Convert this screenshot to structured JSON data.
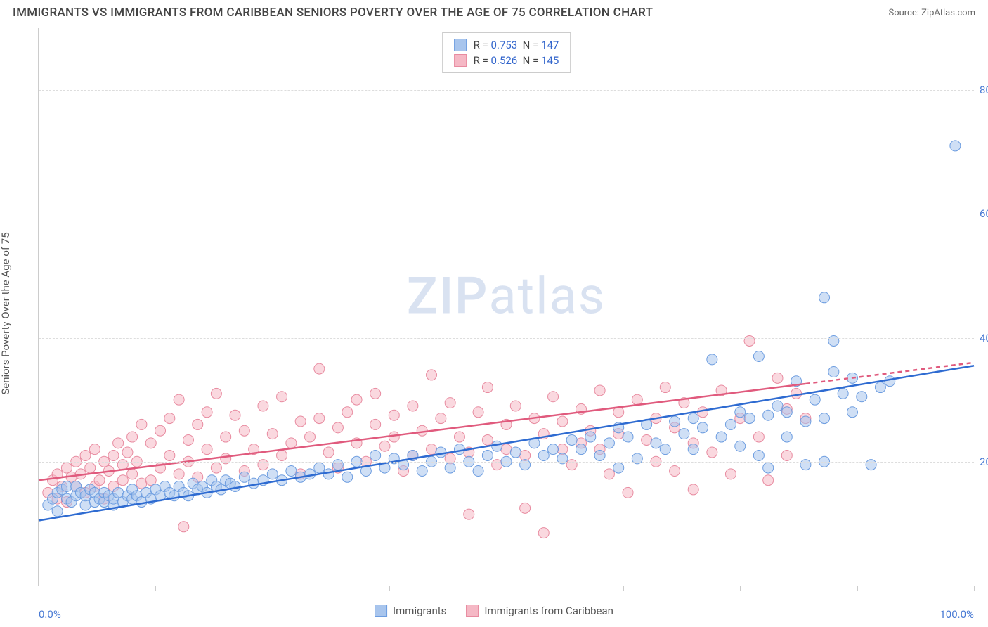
{
  "title": "IMMIGRANTS VS IMMIGRANTS FROM CARIBBEAN SENIORS POVERTY OVER THE AGE OF 75 CORRELATION CHART",
  "source": "Source: ZipAtlas.com",
  "watermark_a": "ZIP",
  "watermark_b": "atlas",
  "ylabel": "Seniors Poverty Over the Age of 75",
  "chart": {
    "type": "scatter",
    "xlim": [
      0,
      100
    ],
    "ylim": [
      0,
      90
    ],
    "xtick_positions": [
      0,
      12.5,
      25,
      37.5,
      50,
      62.5,
      75,
      87.5,
      100
    ],
    "xtick_labels": {
      "0": "0.0%",
      "100": "100.0%"
    },
    "ytick_positions": [
      20,
      40,
      60,
      80
    ],
    "ytick_labels": {
      "20": "20.0%",
      "40": "40.0%",
      "60": "60.0%",
      "80": "80.0%"
    },
    "grid_color": "#dddddd",
    "background_color": "#ffffff",
    "point_radius": 7.5,
    "point_opacity": 0.55,
    "line_width": 2.5
  },
  "series": [
    {
      "name": "Immigrants",
      "color_fill": "#a8c5ed",
      "color_stroke": "#6d9de0",
      "line_color": "#2e6bd1",
      "R": "0.753",
      "N": "147",
      "trend": {
        "x1": 0,
        "y1": 10.5,
        "x2": 100,
        "y2": 35.5,
        "solid_to_x": 100
      },
      "points": [
        [
          1,
          13
        ],
        [
          1.5,
          14
        ],
        [
          2,
          15
        ],
        [
          2,
          12
        ],
        [
          2.5,
          15.5
        ],
        [
          3,
          14
        ],
        [
          3,
          16
        ],
        [
          3.5,
          13.5
        ],
        [
          4,
          14.5
        ],
        [
          4,
          16
        ],
        [
          4.5,
          15
        ],
        [
          5,
          13
        ],
        [
          5,
          14.5
        ],
        [
          5.5,
          15.5
        ],
        [
          6,
          13.5
        ],
        [
          6,
          15
        ],
        [
          6.5,
          14
        ],
        [
          7,
          13.5
        ],
        [
          7,
          15
        ],
        [
          7.5,
          14.5
        ],
        [
          8,
          13
        ],
        [
          8,
          14
        ],
        [
          8.5,
          15
        ],
        [
          9,
          13.5
        ],
        [
          9.5,
          14.5
        ],
        [
          10,
          14
        ],
        [
          10,
          15.5
        ],
        [
          10.5,
          14.5
        ],
        [
          11,
          13.5
        ],
        [
          11.5,
          15
        ],
        [
          12,
          14
        ],
        [
          12.5,
          15.5
        ],
        [
          13,
          14.5
        ],
        [
          13.5,
          16
        ],
        [
          14,
          15
        ],
        [
          14.5,
          14.5
        ],
        [
          15,
          16
        ],
        [
          15.5,
          15
        ],
        [
          16,
          14.5
        ],
        [
          16.5,
          16.5
        ],
        [
          17,
          15.5
        ],
        [
          17.5,
          16
        ],
        [
          18,
          15
        ],
        [
          18.5,
          17
        ],
        [
          19,
          16
        ],
        [
          19.5,
          15.5
        ],
        [
          20,
          17
        ],
        [
          20.5,
          16.5
        ],
        [
          21,
          16
        ],
        [
          22,
          17.5
        ],
        [
          23,
          16.5
        ],
        [
          24,
          17
        ],
        [
          25,
          18
        ],
        [
          26,
          17
        ],
        [
          27,
          18.5
        ],
        [
          28,
          17.5
        ],
        [
          29,
          18
        ],
        [
          30,
          19
        ],
        [
          31,
          18
        ],
        [
          32,
          19.5
        ],
        [
          33,
          17.5
        ],
        [
          34,
          20
        ],
        [
          35,
          18.5
        ],
        [
          36,
          21
        ],
        [
          37,
          19
        ],
        [
          38,
          20.5
        ],
        [
          39,
          19.5
        ],
        [
          40,
          21
        ],
        [
          41,
          18.5
        ],
        [
          42,
          20
        ],
        [
          43,
          21.5
        ],
        [
          44,
          19
        ],
        [
          45,
          22
        ],
        [
          46,
          20
        ],
        [
          47,
          18.5
        ],
        [
          48,
          21
        ],
        [
          49,
          22.5
        ],
        [
          50,
          20
        ],
        [
          51,
          21.5
        ],
        [
          52,
          19.5
        ],
        [
          53,
          23
        ],
        [
          54,
          21
        ],
        [
          55,
          22
        ],
        [
          56,
          20.5
        ],
        [
          57,
          23.5
        ],
        [
          58,
          22
        ],
        [
          59,
          24
        ],
        [
          60,
          21
        ],
        [
          61,
          23
        ],
        [
          62,
          25.5
        ],
        [
          62,
          19
        ],
        [
          63,
          24
        ],
        [
          64,
          20.5
        ],
        [
          65,
          26
        ],
        [
          66,
          23
        ],
        [
          67,
          22
        ],
        [
          68,
          26.5
        ],
        [
          69,
          24.5
        ],
        [
          70,
          22
        ],
        [
          70,
          27
        ],
        [
          71,
          25.5
        ],
        [
          72,
          36.5
        ],
        [
          73,
          24
        ],
        [
          74,
          26
        ],
        [
          75,
          22.5
        ],
        [
          75,
          28
        ],
        [
          76,
          27
        ],
        [
          77,
          21
        ],
        [
          77,
          37
        ],
        [
          78,
          27.5
        ],
        [
          78,
          19
        ],
        [
          79,
          29
        ],
        [
          80,
          24
        ],
        [
          80,
          28
        ],
        [
          81,
          33
        ],
        [
          82,
          26.5
        ],
        [
          82,
          19.5
        ],
        [
          83,
          30
        ],
        [
          84,
          27
        ],
        [
          84,
          20
        ],
        [
          85,
          34.5
        ],
        [
          85,
          39.5
        ],
        [
          86,
          31
        ],
        [
          87,
          28
        ],
        [
          87,
          33.5
        ],
        [
          88,
          30.5
        ],
        [
          89,
          19.5
        ],
        [
          90,
          32
        ],
        [
          91,
          33
        ],
        [
          84,
          46.5
        ],
        [
          98,
          71
        ]
      ]
    },
    {
      "name": "Immigrants from Caribbean",
      "color_fill": "#f5b8c5",
      "color_stroke": "#e88ba0",
      "line_color": "#e05a7d",
      "R": "0.526",
      "N": "145",
      "trend": {
        "x1": 0,
        "y1": 17,
        "x2": 100,
        "y2": 36,
        "solid_to_x": 82
      },
      "points": [
        [
          1,
          15
        ],
        [
          1.5,
          17
        ],
        [
          2,
          14
        ],
        [
          2,
          18
        ],
        [
          2.5,
          16
        ],
        [
          3,
          19
        ],
        [
          3,
          13.5
        ],
        [
          3.5,
          17.5
        ],
        [
          4,
          16
        ],
        [
          4,
          20
        ],
        [
          4.5,
          18
        ],
        [
          5,
          15
        ],
        [
          5,
          21
        ],
        [
          5.5,
          19
        ],
        [
          6,
          16
        ],
        [
          6,
          22
        ],
        [
          6.5,
          17
        ],
        [
          7,
          20
        ],
        [
          7,
          14
        ],
        [
          7.5,
          18.5
        ],
        [
          8,
          21
        ],
        [
          8,
          16
        ],
        [
          8.5,
          23
        ],
        [
          9,
          17
        ],
        [
          9,
          19.5
        ],
        [
          9.5,
          21.5
        ],
        [
          10,
          18
        ],
        [
          10,
          24
        ],
        [
          10.5,
          20
        ],
        [
          11,
          16.5
        ],
        [
          11,
          26
        ],
        [
          12,
          23
        ],
        [
          12,
          17
        ],
        [
          13,
          25
        ],
        [
          13,
          19
        ],
        [
          14,
          21
        ],
        [
          14,
          27
        ],
        [
          15,
          18
        ],
        [
          15,
          30
        ],
        [
          15.5,
          9.5
        ],
        [
          16,
          23.5
        ],
        [
          16,
          20
        ],
        [
          17,
          26
        ],
        [
          17,
          17.5
        ],
        [
          18,
          22
        ],
        [
          18,
          28
        ],
        [
          19,
          19
        ],
        [
          19,
          31
        ],
        [
          20,
          24
        ],
        [
          20,
          20.5
        ],
        [
          21,
          27.5
        ],
        [
          22,
          18.5
        ],
        [
          22,
          25
        ],
        [
          23,
          22
        ],
        [
          24,
          29
        ],
        [
          24,
          19.5
        ],
        [
          25,
          24.5
        ],
        [
          26,
          21
        ],
        [
          26,
          30.5
        ],
        [
          27,
          23
        ],
        [
          28,
          26.5
        ],
        [
          28,
          18
        ],
        [
          29,
          24
        ],
        [
          30,
          27
        ],
        [
          30,
          35
        ],
        [
          31,
          21.5
        ],
        [
          32,
          25.5
        ],
        [
          32,
          19
        ],
        [
          33,
          28
        ],
        [
          34,
          23
        ],
        [
          34,
          30
        ],
        [
          35,
          20
        ],
        [
          36,
          26
        ],
        [
          36,
          31
        ],
        [
          37,
          22.5
        ],
        [
          38,
          27.5
        ],
        [
          38,
          24
        ],
        [
          39,
          18.5
        ],
        [
          40,
          29
        ],
        [
          40,
          21
        ],
        [
          41,
          25
        ],
        [
          42,
          34
        ],
        [
          42,
          22
        ],
        [
          43,
          27
        ],
        [
          44,
          20.5
        ],
        [
          44,
          29.5
        ],
        [
          45,
          24
        ],
        [
          46,
          21.5
        ],
        [
          46,
          11.5
        ],
        [
          47,
          28
        ],
        [
          48,
          23.5
        ],
        [
          48,
          32
        ],
        [
          49,
          19.5
        ],
        [
          50,
          26
        ],
        [
          50,
          22
        ],
        [
          51,
          29
        ],
        [
          52,
          21
        ],
        [
          52,
          12.5
        ],
        [
          53,
          27
        ],
        [
          54,
          24.5
        ],
        [
          54,
          8.5
        ],
        [
          55,
          30.5
        ],
        [
          56,
          22
        ],
        [
          56,
          26.5
        ],
        [
          57,
          19.5
        ],
        [
          58,
          28.5
        ],
        [
          58,
          23
        ],
        [
          59,
          25
        ],
        [
          60,
          22
        ],
        [
          60,
          31.5
        ],
        [
          61,
          18
        ],
        [
          62,
          28
        ],
        [
          62,
          24.5
        ],
        [
          63,
          15
        ],
        [
          64,
          30
        ],
        [
          65,
          23.5
        ],
        [
          66,
          27
        ],
        [
          66,
          20
        ],
        [
          67,
          32
        ],
        [
          68,
          18.5
        ],
        [
          68,
          25.5
        ],
        [
          69,
          29.5
        ],
        [
          70,
          23
        ],
        [
          70,
          15.5
        ],
        [
          71,
          28
        ],
        [
          72,
          21.5
        ],
        [
          73,
          31.5
        ],
        [
          74,
          18
        ],
        [
          75,
          27
        ],
        [
          76,
          39.5
        ],
        [
          77,
          24
        ],
        [
          78,
          17
        ],
        [
          79,
          33.5
        ],
        [
          80,
          28.5
        ],
        [
          80,
          21
        ],
        [
          81,
          31
        ],
        [
          82,
          27
        ]
      ]
    }
  ],
  "legend": {
    "label_a": "Immigrants",
    "label_b": "Immigrants from Caribbean"
  }
}
